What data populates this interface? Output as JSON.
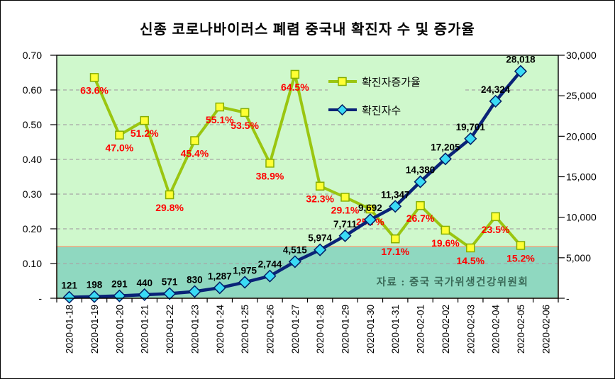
{
  "title": "신종 코로나바이러스 폐렴 중국내 확진자 수 및 증가율",
  "source_note": "자료 : 중국 국가위생건강위원회",
  "legend": {
    "items": [
      {
        "label": "확진자증가율",
        "series": "growth_rate"
      },
      {
        "label": "확진자수",
        "series": "confirmed_count"
      }
    ]
  },
  "colors": {
    "plot_bg": "#CFF8CC",
    "band_fill": "#8FD8C0",
    "band_edge": "#F0A87E",
    "gridline": "#A6A6A6",
    "axis": "#000000",
    "growth_line": "#9AC610",
    "growth_marker_fill": "#FFFF33",
    "growth_marker_edge": "#86AD00",
    "count_line": "#0A2378",
    "count_marker_fill": "#3ADBF5",
    "count_marker_edge": "#001E66",
    "rate_label": "#FF0000",
    "count_label": "#000000",
    "tick_label": "#000000",
    "source_note": "#3A6A58"
  },
  "chart_data": {
    "type": "line",
    "title": "신종 코로나바이러스 폐렴 중국내 확진자 수 및 증가율",
    "grid": "horizontal-dashed",
    "legend_position": "inside-top-right",
    "categories": [
      "2020-01-18",
      "2020-01-19",
      "2020-01-20",
      "2020-01-21",
      "2020-01-22",
      "2020-01-23",
      "2020-01-24",
      "2020-01-25",
      "2020-01-26",
      "2020-01-27",
      "2020-01-28",
      "2020-01-29",
      "2020-01-30",
      "2020-01-31",
      "2020-02-01",
      "2020-02-02",
      "2020-02-03",
      "2020-02-04",
      "2020-02-05",
      "2020-02-06"
    ],
    "series": [
      {
        "name": "확진자증가율",
        "yaxis": "left",
        "marker": "square",
        "start_index": 1,
        "values": [
          0.636,
          0.47,
          0.512,
          0.298,
          0.454,
          0.551,
          0.535,
          0.389,
          0.645,
          0.323,
          0.291,
          0.257,
          0.171,
          0.267,
          0.196,
          0.145,
          0.235,
          0.152
        ],
        "labels": [
          "63.6%",
          "47.0%",
          "51.2%",
          "29.8%",
          "45.4%",
          "55.1%",
          "53.5%",
          "38.9%",
          "64.5%",
          "32.3%",
          "29.1%",
          "25.7%",
          "17.1%",
          "26.7%",
          "19.6%",
          "14.5%",
          "23.5%",
          "15.2%"
        ]
      },
      {
        "name": "확진자수",
        "yaxis": "right",
        "marker": "diamond",
        "start_index": 0,
        "values": [
          121,
          198,
          291,
          440,
          571,
          830,
          1287,
          1975,
          2744,
          4515,
          5974,
          7711,
          9692,
          11347,
          14380,
          17205,
          19701,
          24324,
          28018
        ],
        "labels": [
          "121",
          "198",
          "291",
          "440",
          "571",
          "830",
          "1,287",
          "1,975",
          "2,744",
          "4,515",
          "5,974",
          "7,711",
          "9,692",
          "11,347",
          "14,380",
          "17,205",
          "19,701",
          "24,324",
          "28,018"
        ]
      }
    ],
    "left_axis": {
      "min": 0,
      "max": 0.7,
      "tick_step": 0.1,
      "tick_labels": [
        "-",
        "0.10",
        "0.20",
        "0.30",
        "0.40",
        "0.50",
        "0.60",
        "0.70"
      ]
    },
    "right_axis": {
      "min": 0,
      "max": 30000,
      "tick_step": 5000,
      "tick_labels": [
        "-",
        "5,000",
        "10,000",
        "15,000",
        "20,000",
        "25,000",
        "30,000"
      ]
    },
    "band": {
      "from": 0,
      "to": 0.149
    }
  }
}
